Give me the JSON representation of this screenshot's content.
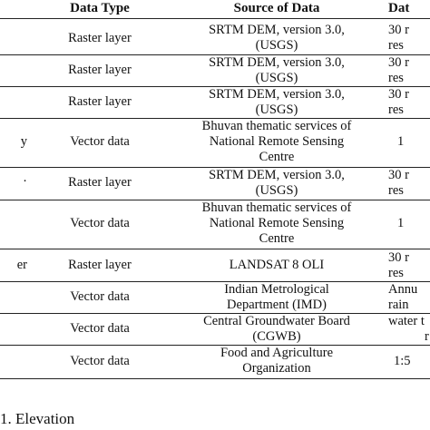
{
  "table": {
    "headers": {
      "type": "Data Type",
      "source": "Source of Data",
      "date": "Dat"
    },
    "rows": [
      {
        "first": "",
        "type": "Raster layer",
        "source": [
          "SRTM DEM, version 3.0,",
          "(USGS)"
        ],
        "date": [
          "30 r",
          "res"
        ]
      },
      {
        "first": "",
        "type": "Raster layer",
        "source": [
          "SRTM DEM, version 3.0,",
          "(USGS)"
        ],
        "date": [
          "30 r",
          "res"
        ]
      },
      {
        "first": "",
        "type": "Raster layer",
        "source": [
          "SRTM DEM, version 3.0,",
          "(USGS)"
        ],
        "date": [
          "30 r",
          "res"
        ]
      },
      {
        "first": "y",
        "type": "Vector data",
        "source": [
          "Bhuvan thematic services of",
          "National Remote Sensing",
          "Centre"
        ],
        "date": [
          "1",
          ""
        ]
      },
      {
        "first": "",
        "type": "Raster layer",
        "source": [
          "SRTM DEM, version 3.0,",
          "(USGS)"
        ],
        "date": [
          "30 r",
          "res"
        ]
      },
      {
        "first": "",
        "type": "Vector data",
        "source": [
          "Bhuvan thematic services of",
          "National Remote Sensing",
          "Centre"
        ],
        "date": [
          "1",
          ""
        ]
      },
      {
        "first": "er",
        "type": "Raster layer",
        "source": [
          "LANDSAT 8 OLI"
        ],
        "date": [
          "30 r",
          "res"
        ]
      },
      {
        "first": "",
        "type": "Vector data",
        "source": [
          "Indian Metrological",
          "Department (IMD)"
        ],
        "date": [
          "Annu",
          "rain"
        ]
      },
      {
        "first": "",
        "type": "Vector data",
        "source": [
          "Central Groundwater Board",
          "(CGWB)"
        ],
        "date": [
          "water t",
          "r"
        ]
      },
      {
        "first": "",
        "type": "Vector data",
        "source": [
          "Food and Agriculture",
          "Organization"
        ],
        "date": [
          "1:5",
          ""
        ]
      }
    ]
  },
  "section_heading": "1. Elevation"
}
